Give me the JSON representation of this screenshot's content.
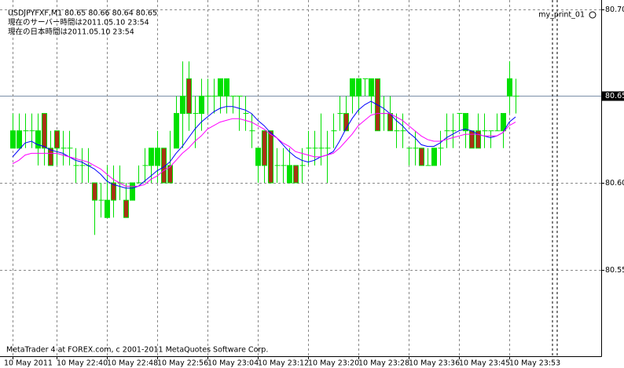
{
  "chart_data": {
    "type": "candlestick",
    "header": [
      "USDJPYFXF,M1  80.65 80.66 80.64 80.65",
      "現在のサーバー時間は2011.05.10 23:54",
      "現在の日本時間は2011.05.10 23:54"
    ],
    "indicator_label": "my_print_01",
    "footer": "MetaTrader 4 at FOREX.com, c 2001-2011 MetaQuotes Software Corp.",
    "categories": [
      "10 May 2011",
      null,
      null,
      null,
      null,
      null,
      null,
      "10 May 22:40",
      null,
      null,
      null,
      null,
      null,
      null,
      null,
      "10 May 22:48",
      null,
      null,
      null,
      null,
      null,
      null,
      null,
      "10 May 22:56",
      null,
      null,
      null,
      null,
      null,
      null,
      null,
      "10 May 23:04",
      null,
      null,
      null,
      null,
      null,
      null,
      null,
      "10 May 23:12",
      null,
      null,
      null,
      null,
      null,
      null,
      null,
      "10 May 23:20",
      null,
      null,
      null,
      null,
      null,
      null,
      null,
      "10 May 23:28",
      null,
      null,
      null,
      null,
      null,
      null,
      null,
      "10 May 23:36",
      null,
      null,
      null,
      null,
      null,
      null,
      null,
      "10 May 23:45",
      null,
      null,
      null,
      null,
      null,
      null,
      null,
      "10 May 23:53",
      null
    ],
    "open": [
      80.62,
      80.62,
      80.63,
      80.63,
      80.62,
      80.64,
      80.62,
      80.63,
      80.62,
      80.62,
      80.61,
      80.61,
      80.61,
      80.6,
      80.59,
      80.58,
      80.6,
      80.6,
      80.59,
      80.59,
      80.6,
      80.61,
      80.61,
      80.61,
      80.62,
      80.61,
      80.62,
      80.64,
      80.66,
      80.64,
      80.64,
      80.65,
      80.65,
      80.65,
      80.65,
      80.65,
      80.65,
      80.64,
      80.63,
      80.61,
      80.63,
      80.63,
      80.61,
      80.61,
      80.6,
      80.61,
      80.61,
      80.62,
      80.62,
      80.62,
      80.62,
      80.63,
      80.64,
      80.64,
      80.65,
      80.65,
      80.66,
      80.65,
      80.66,
      80.64,
      80.64,
      80.63,
      80.63,
      80.62,
      80.62,
      80.62,
      80.61,
      80.61,
      80.62,
      80.63,
      80.63,
      80.64,
      80.63,
      80.63,
      80.63,
      80.63,
      80.63,
      80.63,
      80.63,
      80.65,
      80.65
    ],
    "high": [
      80.64,
      80.64,
      80.64,
      80.64,
      80.64,
      80.64,
      80.63,
      80.63,
      80.63,
      80.63,
      80.62,
      80.62,
      80.62,
      80.6,
      80.6,
      80.61,
      80.61,
      80.61,
      80.6,
      80.6,
      80.61,
      80.62,
      80.62,
      80.63,
      80.62,
      80.63,
      80.65,
      80.67,
      80.67,
      80.65,
      80.66,
      80.66,
      80.66,
      80.66,
      80.66,
      80.65,
      80.65,
      80.65,
      80.64,
      80.62,
      80.63,
      80.63,
      80.62,
      80.62,
      80.62,
      80.61,
      80.62,
      80.63,
      80.63,
      80.64,
      80.63,
      80.64,
      80.65,
      80.65,
      80.66,
      80.66,
      80.66,
      80.66,
      80.66,
      80.65,
      80.65,
      80.64,
      80.64,
      80.62,
      80.63,
      80.62,
      80.62,
      80.62,
      80.63,
      80.64,
      80.64,
      80.64,
      80.64,
      80.63,
      80.64,
      80.64,
      80.63,
      80.64,
      80.64,
      80.67,
      80.66
    ],
    "low": [
      80.62,
      80.62,
      80.62,
      80.62,
      80.61,
      80.61,
      80.61,
      80.61,
      80.61,
      80.61,
      80.6,
      80.6,
      80.6,
      80.57,
      80.58,
      80.58,
      80.58,
      80.59,
      80.58,
      80.59,
      80.6,
      80.6,
      80.6,
      80.6,
      80.6,
      80.6,
      80.62,
      80.62,
      80.63,
      80.62,
      80.63,
      80.64,
      80.64,
      80.64,
      80.64,
      80.64,
      80.63,
      80.63,
      80.62,
      80.6,
      80.6,
      80.6,
      80.6,
      80.6,
      80.6,
      80.6,
      80.6,
      80.61,
      80.61,
      80.61,
      80.6,
      80.62,
      80.63,
      80.63,
      80.64,
      80.64,
      80.65,
      80.64,
      80.63,
      80.63,
      80.63,
      80.62,
      80.62,
      80.61,
      80.61,
      80.61,
      80.61,
      80.61,
      80.61,
      80.62,
      80.62,
      80.63,
      80.62,
      80.62,
      80.62,
      80.62,
      80.62,
      80.63,
      80.62,
      80.64,
      80.64
    ],
    "close": [
      80.63,
      80.63,
      80.63,
      80.63,
      80.63,
      80.62,
      80.61,
      80.62,
      80.62,
      80.62,
      80.61,
      80.61,
      80.61,
      80.59,
      80.59,
      80.59,
      80.59,
      80.6,
      80.58,
      80.6,
      80.6,
      80.61,
      80.62,
      80.62,
      80.6,
      80.6,
      80.64,
      80.65,
      80.64,
      80.64,
      80.65,
      80.65,
      80.65,
      80.66,
      80.66,
      80.65,
      80.65,
      80.64,
      80.63,
      80.62,
      80.61,
      80.6,
      80.61,
      80.61,
      80.61,
      80.6,
      80.61,
      80.62,
      80.62,
      80.62,
      80.62,
      80.63,
      80.64,
      80.63,
      80.66,
      80.66,
      80.66,
      80.66,
      80.63,
      80.64,
      80.63,
      80.63,
      80.63,
      80.62,
      80.62,
      80.61,
      80.61,
      80.62,
      80.62,
      80.63,
      80.63,
      80.64,
      80.64,
      80.62,
      80.62,
      80.63,
      80.63,
      80.63,
      80.64,
      80.66,
      80.65
    ],
    "up_color": "#00e000",
    "down_color": "#a83214",
    "lines": [
      {
        "color": "#0000ff",
        "values": [
          80.615,
          80.619,
          80.623,
          80.624,
          80.622,
          80.621,
          80.619,
          80.618,
          80.617,
          80.615,
          80.613,
          80.612,
          80.61,
          80.608,
          80.605,
          80.601,
          80.599,
          80.598,
          80.597,
          80.597,
          80.598,
          80.601,
          80.604,
          80.607,
          80.609,
          80.612,
          80.617,
          80.621,
          80.626,
          80.631,
          80.635,
          80.638,
          80.641,
          80.643,
          80.644,
          80.644,
          80.643,
          80.642,
          80.64,
          80.636,
          80.633,
          80.629,
          80.626,
          80.622,
          80.618,
          80.615,
          80.613,
          80.612,
          80.613,
          80.615,
          80.616,
          80.618,
          80.624,
          80.631,
          80.637,
          80.642,
          80.645,
          80.647,
          80.645,
          80.643,
          80.64,
          80.636,
          80.633,
          80.629,
          80.626,
          80.622,
          80.621,
          80.621,
          80.623,
          80.626,
          80.628,
          80.63,
          80.631,
          80.63,
          80.628,
          80.627,
          80.626,
          80.627,
          80.629,
          80.635,
          80.638
        ]
      },
      {
        "color": "#ff00ff",
        "values": [
          80.611,
          80.613,
          80.616,
          80.617,
          80.617,
          80.617,
          80.617,
          80.617,
          80.616,
          80.615,
          80.614,
          80.613,
          80.612,
          80.61,
          80.608,
          80.605,
          80.602,
          80.6,
          80.598,
          80.598,
          80.598,
          80.599,
          80.602,
          80.604,
          80.607,
          80.609,
          80.613,
          80.617,
          80.62,
          80.624,
          80.627,
          80.631,
          80.633,
          80.635,
          80.636,
          80.637,
          80.637,
          80.636,
          80.635,
          80.633,
          80.631,
          80.628,
          80.626,
          80.623,
          80.621,
          80.618,
          80.617,
          80.616,
          80.615,
          80.615,
          80.616,
          80.617,
          80.62,
          80.624,
          80.628,
          80.633,
          80.636,
          80.639,
          80.64,
          80.64,
          80.64,
          80.638,
          80.636,
          80.633,
          80.63,
          80.627,
          80.625,
          80.624,
          80.624,
          80.625,
          80.626,
          80.627,
          80.628,
          80.628,
          80.628,
          80.627,
          80.627,
          80.627,
          80.629,
          80.633,
          80.635
        ]
      }
    ],
    "ylim": [
      80.5005,
      80.7054
    ],
    "yticks": [
      {
        "value": 80.7,
        "label": "80.70"
      },
      80.65,
      {
        "value": 80.6,
        "label": "80.60"
      },
      80.55
    ],
    "grid": true,
    "price_line": {
      "value": 80.65,
      "color": "#7b8fa8"
    }
  }
}
